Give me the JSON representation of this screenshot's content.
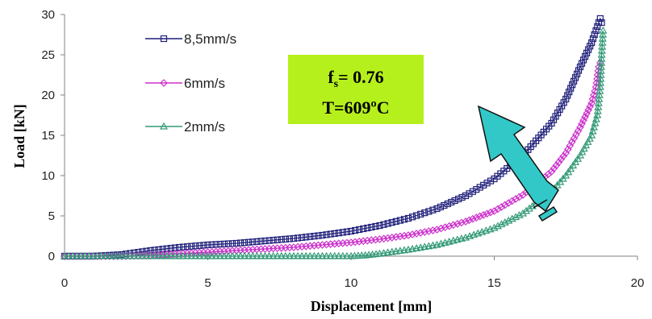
{
  "chart_data": {
    "type": "line",
    "title": "",
    "xlabel": "Displacement [mm]",
    "ylabel": "Load [kN]",
    "xlim": [
      0,
      20
    ],
    "ylim": [
      0,
      30
    ],
    "x_ticks": [
      "0",
      "5",
      "10",
      "15",
      "20"
    ],
    "y_ticks": [
      "0",
      "5",
      "10",
      "15",
      "20",
      "25",
      "30"
    ],
    "grid": false,
    "legend_position": "top-left",
    "series": [
      {
        "name": "8,5mm/s",
        "color": "#1f1f7a",
        "marker": "square",
        "points": [
          [
            0,
            0
          ],
          [
            1,
            0
          ],
          [
            2,
            0.2
          ],
          [
            3,
            0.7
          ],
          [
            4,
            1.1
          ],
          [
            5,
            1.4
          ],
          [
            6,
            1.6
          ],
          [
            7,
            1.9
          ],
          [
            8,
            2.2
          ],
          [
            9,
            2.6
          ],
          [
            10,
            3.1
          ],
          [
            11,
            3.8
          ],
          [
            12,
            4.7
          ],
          [
            13,
            5.9
          ],
          [
            14,
            7.5
          ],
          [
            15,
            9.6
          ],
          [
            16,
            12.5
          ],
          [
            17,
            16.5
          ],
          [
            17.5,
            19.5
          ],
          [
            18,
            23.5
          ],
          [
            18.4,
            26.5
          ],
          [
            18.6,
            28.5
          ],
          [
            18.7,
            29.5
          ],
          [
            18.75,
            29
          ]
        ]
      },
      {
        "name": "6mm/s",
        "color": "#cc33cc",
        "marker": "diamond",
        "points": [
          [
            0,
            0
          ],
          [
            1,
            0
          ],
          [
            2,
            0
          ],
          [
            3,
            0.1
          ],
          [
            4,
            0.3
          ],
          [
            5,
            0.5
          ],
          [
            6,
            0.7
          ],
          [
            7,
            0.9
          ],
          [
            8,
            1.1
          ],
          [
            9,
            1.4
          ],
          [
            10,
            1.7
          ],
          [
            11,
            2.1
          ],
          [
            12,
            2.6
          ],
          [
            13,
            3.3
          ],
          [
            14,
            4.3
          ],
          [
            15,
            5.6
          ],
          [
            16,
            7.6
          ],
          [
            17,
            10.5
          ],
          [
            17.5,
            12.8
          ],
          [
            18,
            16
          ],
          [
            18.4,
            19
          ],
          [
            18.55,
            21
          ],
          [
            18.65,
            23.5
          ],
          [
            18.7,
            24
          ]
        ]
      },
      {
        "name": "2mm/s",
        "color": "#339977",
        "marker": "triangle",
        "points": [
          [
            0,
            0
          ],
          [
            2,
            0
          ],
          [
            4,
            0
          ],
          [
            6,
            0
          ],
          [
            8,
            0
          ],
          [
            10,
            0
          ],
          [
            10.5,
            0.1
          ],
          [
            11,
            0.3
          ],
          [
            12,
            0.8
          ],
          [
            13,
            1.4
          ],
          [
            14,
            2.3
          ],
          [
            15,
            3.5
          ],
          [
            16,
            5.3
          ],
          [
            17,
            8
          ],
          [
            17.5,
            10
          ],
          [
            18,
            12.5
          ],
          [
            18.4,
            15
          ],
          [
            18.6,
            17.5
          ],
          [
            18.7,
            21
          ],
          [
            18.75,
            25
          ],
          [
            18.8,
            28
          ]
        ]
      }
    ]
  },
  "annotation": {
    "line1_main": "f",
    "line1_sub": "s",
    "line1_rest": "= 0.76",
    "line2": "T=609ºC",
    "box_color": "#b6f01c",
    "arrow_color": "#33c8c8"
  }
}
